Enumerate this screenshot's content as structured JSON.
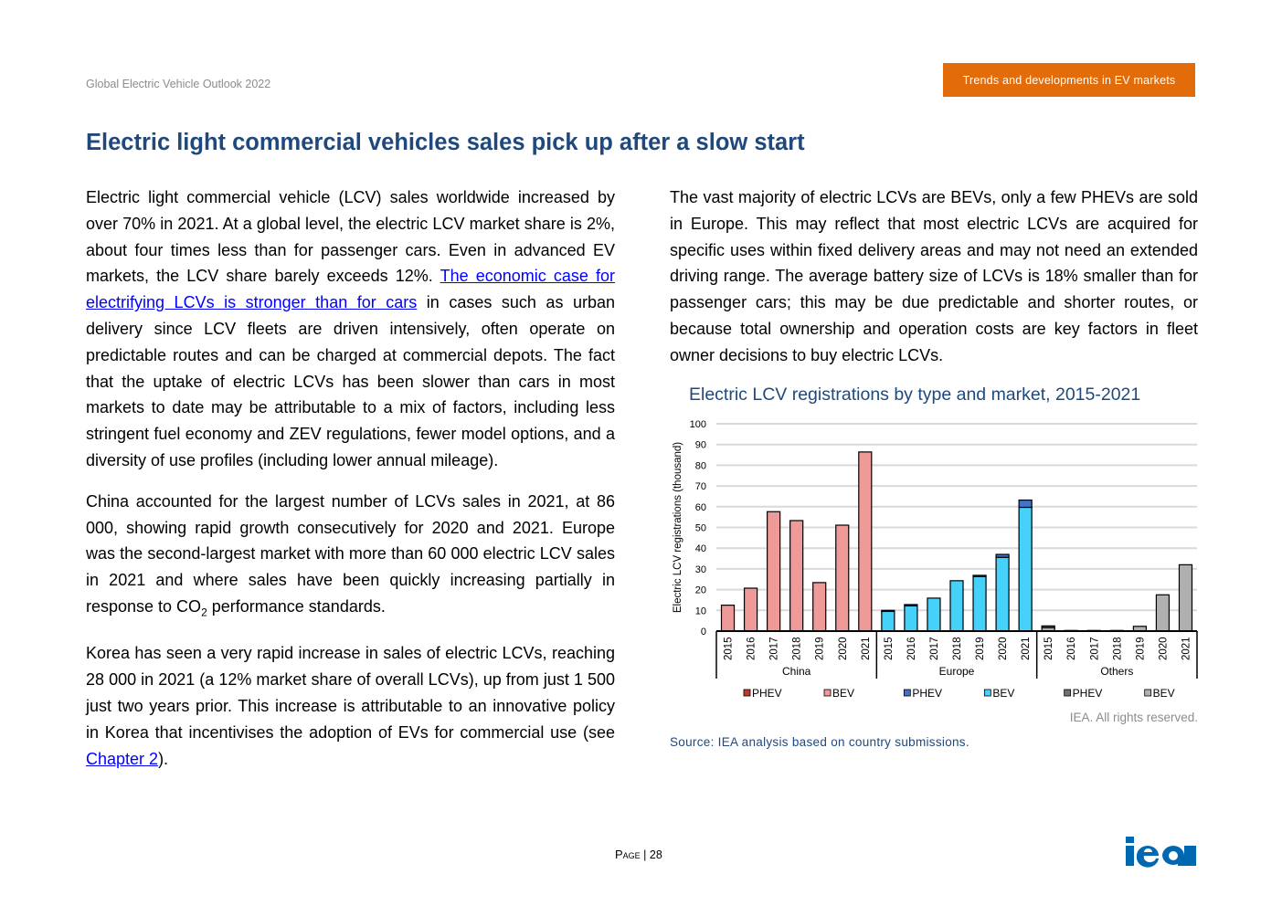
{
  "header": {
    "publication": "Global Electric Vehicle Outlook 2022",
    "section_tag": "Trends and developments in EV markets"
  },
  "title": "Electric light commercial vehicles sales pick up after a slow start",
  "left_column": {
    "p1_before_link": "Electric light commercial vehicle (LCV) sales worldwide increased by over 70% in 2021. At a global level, the electric LCV market share is 2%, about four times less than for passenger cars. Even in advanced EV markets, the LCV share barely exceeds 12%. ",
    "p1_link": "The economic case for electrifying LCVs is stronger than for cars",
    "p1_after_link": " in cases such as urban delivery since LCV fleets are driven intensively, often operate on predictable routes and can be charged at commercial depots. The fact that the uptake of electric LCVs has been slower than cars in most markets to date may be attributable to a mix of factors, including less stringent fuel economy and ZEV regulations, fewer model options, and a diversity of use profiles (including lower annual mileage).",
    "p2_before_sub": "China accounted for the largest number of LCVs sales in 2021, at 86 000, showing rapid growth consecutively for 2020 and 2021. Europe was the second-largest market with more than 60 000 electric LCV sales in 2021 and where sales have been quickly increasing partially in response to CO",
    "p2_sub": "2",
    "p2_after_sub": " performance standards.",
    "p3_before_link": "Korea has seen a very rapid increase in sales of electric LCVs, reaching 28 000 in 2021 (a 12% market share of overall LCVs), up from just 1 500 just two years prior. This increase is attributable to an innovative policy in Korea that incentivises the adoption of EVs for commercial use (see ",
    "p3_link": "Chapter 2",
    "p3_after_link": ")."
  },
  "right_column": {
    "p1": "The vast majority of electric LCVs are BEVs, only a few PHEVs are sold in Europe. This may reflect  that most electric LCVs are acquired for specific uses within fixed delivery areas and may not need an extended driving range. The average battery size of LCVs is 18% smaller than for passenger cars; this may be due predictable and shorter routes, or because total ownership and operation costs are key factors in fleet owner decisions to buy electric LCVs."
  },
  "chart_data": {
    "type": "bar",
    "stacked": true,
    "title": "Electric LCV registrations by type and market, 2015-2021",
    "ylabel": "Electric LCV registrations (thousand)",
    "xlabel": "",
    "ylim": [
      0,
      100
    ],
    "yticks": [
      0,
      10,
      20,
      30,
      40,
      50,
      60,
      70,
      80,
      90,
      100
    ],
    "grid": true,
    "legend_placement": "bottom",
    "groups": [
      {
        "name": "China",
        "years": [
          "2015",
          "2016",
          "2017",
          "2018",
          "2019",
          "2020",
          "2021"
        ],
        "series": [
          {
            "name": "PHEV",
            "color": "#c0392b",
            "values": [
              0,
              0,
              0,
              0,
              0,
              0,
              0
            ]
          },
          {
            "name": "BEV",
            "color": "#ee9a98",
            "values": [
              12.5,
              20.7,
              57.6,
              53.3,
              23.4,
              51.1,
              86.4
            ]
          }
        ]
      },
      {
        "name": "Europe",
        "years": [
          "2015",
          "2016",
          "2017",
          "2018",
          "2019",
          "2020",
          "2021"
        ],
        "series": [
          {
            "name": "PHEV",
            "color": "#4472c4",
            "values": [
              0.5,
              0.6,
              0,
              0,
              0.6,
              1.4,
              3.5
            ]
          },
          {
            "name": "BEV",
            "color": "#45d1fa",
            "values": [
              9.5,
              12.2,
              15.9,
              24.3,
              26.3,
              35.6,
              59.7
            ]
          }
        ]
      },
      {
        "name": "Others",
        "years": [
          "2015",
          "2016",
          "2017",
          "2018",
          "2019",
          "2020",
          "2021"
        ],
        "series": [
          {
            "name": "PHEV",
            "color": "#707070",
            "values": [
              0.8,
              0.1,
              0.1,
              0.1,
              0,
              0,
              0
            ]
          },
          {
            "name": "BEV",
            "color": "#b0b0b0",
            "values": [
              1.7,
              0.2,
              0.2,
              0.2,
              2.3,
              17.5,
              32.0
            ]
          }
        ]
      }
    ]
  },
  "rights": "IEA. All rights reserved.",
  "source": "Source: IEA analysis based on country submissions.",
  "footer": {
    "page_label": "Page",
    "separator": "|",
    "page_number": "28"
  },
  "logo_text": "iea"
}
